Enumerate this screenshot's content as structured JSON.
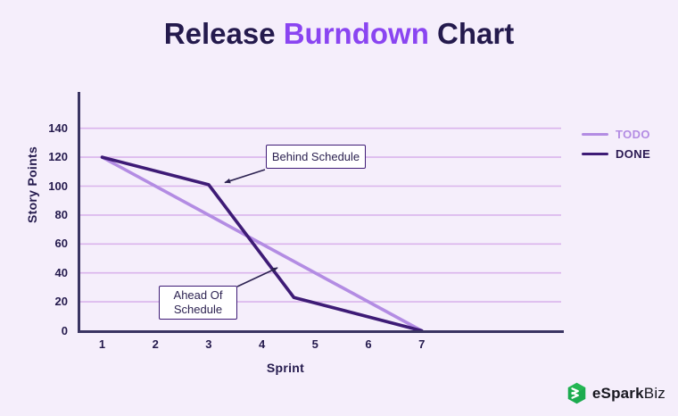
{
  "title": {
    "pre": "Release ",
    "highlight": "Burndown",
    "post": " Chart"
  },
  "colors": {
    "background": "#f5eefb",
    "title_dark": "#241a4d",
    "title_purple": "#8a45f1",
    "todo": "#b38ce3",
    "done": "#3e1b76",
    "grid": "#dab4ec",
    "axis": "#3a3462",
    "arrow": "#2d2352",
    "annotation_border": "#3e1b76",
    "logo_green": "#1cab4f"
  },
  "chart_data": {
    "type": "line",
    "title": "Release Burndown Chart",
    "xlabel": "Sprint",
    "ylabel": "Story Points",
    "xticks": [
      1,
      2,
      3,
      4,
      5,
      6,
      7
    ],
    "yticks": [
      0,
      20,
      40,
      60,
      80,
      100,
      120,
      140
    ],
    "xlim": [
      1,
      7
    ],
    "ylim": [
      0,
      150
    ],
    "grid": "horizontal",
    "legend_position": "right",
    "series": [
      {
        "name": "TODO",
        "color": "#b38ce3",
        "x": [
          1,
          7
        ],
        "y": [
          120,
          0
        ]
      },
      {
        "name": "DONE",
        "color": "#3e1b76",
        "x": [
          1,
          3,
          4.6,
          7
        ],
        "y": [
          120,
          101,
          23,
          0
        ]
      }
    ]
  },
  "annotations": {
    "behind": {
      "line1": "Behind Schedule"
    },
    "ahead": {
      "line1": "Ahead Of",
      "line2": "Schedule"
    }
  },
  "brand": {
    "name_bold": "eSpark",
    "name_light": "Biz"
  }
}
